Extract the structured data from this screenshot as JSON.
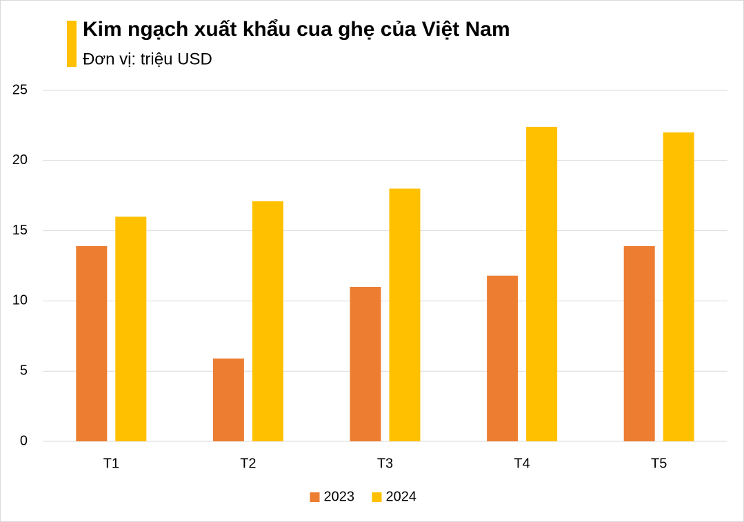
{
  "chart_data": {
    "type": "bar",
    "title": "Kim ngạch xuất khẩu cua ghẹ của Việt Nam",
    "subtitle": "Đơn vị: triệu USD",
    "categories": [
      "T1",
      "T2",
      "T3",
      "T4",
      "T5"
    ],
    "series": [
      {
        "name": "2023",
        "color": "#ed7d31",
        "values": [
          13.9,
          5.9,
          11,
          11.8,
          13.9
        ]
      },
      {
        "name": "2024",
        "color": "#ffc000",
        "values": [
          16,
          17.1,
          18,
          22.4,
          22
        ]
      }
    ],
    "ylim": [
      0,
      25
    ],
    "yticks": [
      0,
      5,
      10,
      15,
      20,
      25
    ],
    "grid": true,
    "legend": "bottom"
  }
}
